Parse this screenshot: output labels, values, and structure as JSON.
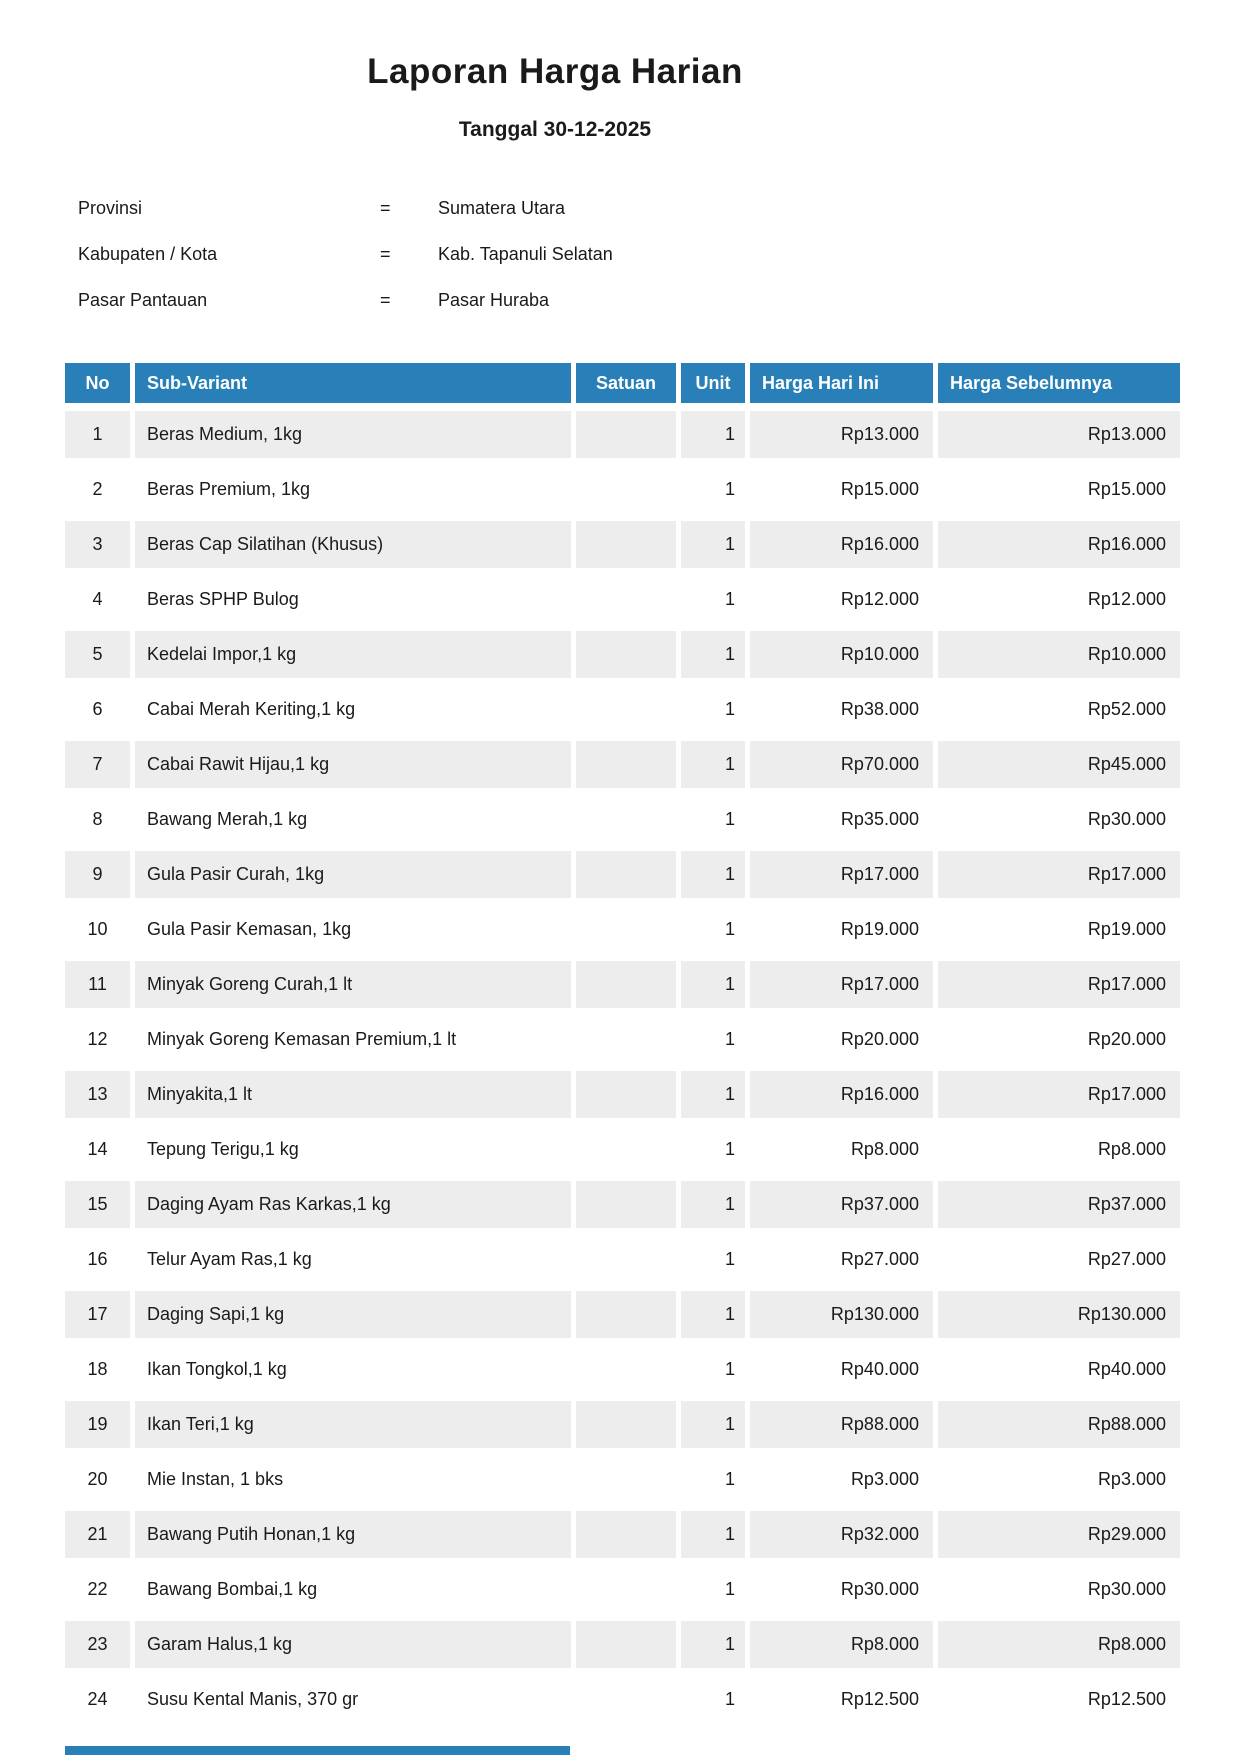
{
  "page": {
    "title": "Laporan Harga Harian",
    "subtitle": "Tanggal 30-12-2025"
  },
  "meta": {
    "rows": [
      {
        "label": "Provinsi",
        "separator": "=",
        "value": "Sumatera Utara"
      },
      {
        "label": "Kabupaten / Kota",
        "separator": "=",
        "value": "Kab. Tapanuli Selatan"
      },
      {
        "label": "Pasar Pantauan",
        "separator": "=",
        "value": "Pasar Huraba"
      }
    ]
  },
  "table": {
    "columns": [
      "No",
      "Sub-Variant",
      "Satuan",
      "Unit",
      "Harga Hari Ini",
      "Harga Sebelumnya"
    ],
    "rows": [
      {
        "no": "1",
        "sub_variant": "Beras Medium, 1kg",
        "satuan": "",
        "unit": "1",
        "harga_hari_ini": "Rp13.000",
        "harga_sebelumnya": "Rp13.000"
      },
      {
        "no": "2",
        "sub_variant": "Beras Premium, 1kg",
        "satuan": "",
        "unit": "1",
        "harga_hari_ini": "Rp15.000",
        "harga_sebelumnya": "Rp15.000"
      },
      {
        "no": "3",
        "sub_variant": "Beras Cap Silatihan (Khusus)",
        "satuan": "",
        "unit": "1",
        "harga_hari_ini": "Rp16.000",
        "harga_sebelumnya": "Rp16.000"
      },
      {
        "no": "4",
        "sub_variant": "Beras SPHP Bulog",
        "satuan": "",
        "unit": "1",
        "harga_hari_ini": "Rp12.000",
        "harga_sebelumnya": "Rp12.000"
      },
      {
        "no": "5",
        "sub_variant": "Kedelai Impor,1 kg",
        "satuan": "",
        "unit": "1",
        "harga_hari_ini": "Rp10.000",
        "harga_sebelumnya": "Rp10.000"
      },
      {
        "no": "6",
        "sub_variant": "Cabai Merah Keriting,1 kg",
        "satuan": "",
        "unit": "1",
        "harga_hari_ini": "Rp38.000",
        "harga_sebelumnya": "Rp52.000"
      },
      {
        "no": "7",
        "sub_variant": "Cabai Rawit Hijau,1 kg",
        "satuan": "",
        "unit": "1",
        "harga_hari_ini": "Rp70.000",
        "harga_sebelumnya": "Rp45.000"
      },
      {
        "no": "8",
        "sub_variant": "Bawang Merah,1 kg",
        "satuan": "",
        "unit": "1",
        "harga_hari_ini": "Rp35.000",
        "harga_sebelumnya": "Rp30.000"
      },
      {
        "no": "9",
        "sub_variant": "Gula Pasir Curah, 1kg",
        "satuan": "",
        "unit": "1",
        "harga_hari_ini": "Rp17.000",
        "harga_sebelumnya": "Rp17.000"
      },
      {
        "no": "10",
        "sub_variant": "Gula Pasir Kemasan, 1kg",
        "satuan": "",
        "unit": "1",
        "harga_hari_ini": "Rp19.000",
        "harga_sebelumnya": "Rp19.000"
      },
      {
        "no": "11",
        "sub_variant": "Minyak Goreng Curah,1 lt",
        "satuan": "",
        "unit": "1",
        "harga_hari_ini": "Rp17.000",
        "harga_sebelumnya": "Rp17.000"
      },
      {
        "no": "12",
        "sub_variant": "Minyak Goreng Kemasan Premium,1 lt",
        "satuan": "",
        "unit": "1",
        "harga_hari_ini": "Rp20.000",
        "harga_sebelumnya": "Rp20.000"
      },
      {
        "no": "13",
        "sub_variant": "Minyakita,1 lt",
        "satuan": "",
        "unit": "1",
        "harga_hari_ini": "Rp16.000",
        "harga_sebelumnya": "Rp17.000"
      },
      {
        "no": "14",
        "sub_variant": "Tepung Terigu,1 kg",
        "satuan": "",
        "unit": "1",
        "harga_hari_ini": "Rp8.000",
        "harga_sebelumnya": "Rp8.000"
      },
      {
        "no": "15",
        "sub_variant": "Daging Ayam Ras Karkas,1 kg",
        "satuan": "",
        "unit": "1",
        "harga_hari_ini": "Rp37.000",
        "harga_sebelumnya": "Rp37.000"
      },
      {
        "no": "16",
        "sub_variant": "Telur Ayam Ras,1 kg",
        "satuan": "",
        "unit": "1",
        "harga_hari_ini": "Rp27.000",
        "harga_sebelumnya": "Rp27.000"
      },
      {
        "no": "17",
        "sub_variant": "Daging Sapi,1 kg",
        "satuan": "",
        "unit": "1",
        "harga_hari_ini": "Rp130.000",
        "harga_sebelumnya": "Rp130.000"
      },
      {
        "no": "18",
        "sub_variant": "Ikan Tongkol,1 kg",
        "satuan": "",
        "unit": "1",
        "harga_hari_ini": "Rp40.000",
        "harga_sebelumnya": "Rp40.000"
      },
      {
        "no": "19",
        "sub_variant": "Ikan Teri,1 kg",
        "satuan": "",
        "unit": "1",
        "harga_hari_ini": "Rp88.000",
        "harga_sebelumnya": "Rp88.000"
      },
      {
        "no": "20",
        "sub_variant": "Mie Instan, 1 bks",
        "satuan": "",
        "unit": "1",
        "harga_hari_ini": "Rp3.000",
        "harga_sebelumnya": "Rp3.000"
      },
      {
        "no": "21",
        "sub_variant": "Bawang Putih Honan,1 kg",
        "satuan": "",
        "unit": "1",
        "harga_hari_ini": "Rp32.000",
        "harga_sebelumnya": "Rp29.000"
      },
      {
        "no": "22",
        "sub_variant": "Bawang Bombai,1 kg",
        "satuan": "",
        "unit": "1",
        "harga_hari_ini": "Rp30.000",
        "harga_sebelumnya": "Rp30.000"
      },
      {
        "no": "23",
        "sub_variant": "Garam Halus,1 kg",
        "satuan": "",
        "unit": "1",
        "harga_hari_ini": "Rp8.000",
        "harga_sebelumnya": "Rp8.000"
      },
      {
        "no": "24",
        "sub_variant": "Susu Kental Manis, 370 gr",
        "satuan": "",
        "unit": "1",
        "harga_hari_ini": "Rp12.500",
        "harga_sebelumnya": "Rp12.500"
      }
    ]
  },
  "colors": {
    "header_bg": "#2980b9",
    "alt_row_bg": "#ededed",
    "text": "#1a1a1a"
  }
}
